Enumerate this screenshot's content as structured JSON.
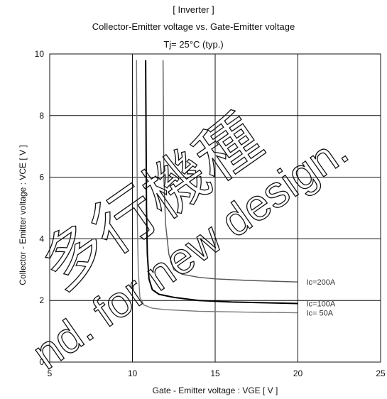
{
  "titles": {
    "line1": "[ Inverter ]",
    "line2": "Collector-Emitter voltage  vs. Gate-Emitter voltage",
    "line3": "Tj= 25°C  (typ.)"
  },
  "watermark": {
    "line1": "多行機種",
    "line2": "nd. for new design."
  },
  "chart_data": {
    "type": "line",
    "xlabel": "Gate - Emitter voltage :  VGE  [ V ]",
    "ylabel": "Collector - Emitter voltage :  VCE  [ V ]",
    "xlim": [
      5,
      25
    ],
    "ylim": [
      0,
      10
    ],
    "xticks": [
      5,
      10,
      15,
      20,
      25
    ],
    "yticks": [
      0,
      2,
      4,
      6,
      8,
      10
    ],
    "grid": true,
    "series": [
      {
        "name": "Ic=200A",
        "color": "#555555",
        "x": [
          11.85,
          11.9,
          12.0,
          12.2,
          12.5,
          13.0,
          14.0,
          15.0,
          17.0,
          20.0
        ],
        "y": [
          9.8,
          6.0,
          4.5,
          3.5,
          3.0,
          2.85,
          2.75,
          2.7,
          2.65,
          2.6
        ]
      },
      {
        "name": "Ic=100A",
        "color": "#000000",
        "x": [
          10.8,
          10.85,
          10.9,
          11.0,
          11.2,
          11.6,
          12.5,
          14.0,
          16.0,
          20.0
        ],
        "y": [
          9.8,
          5.0,
          3.5,
          2.7,
          2.35,
          2.2,
          2.1,
          2.0,
          1.95,
          1.9
        ]
      },
      {
        "name": "Ic= 50A",
        "color": "#777777",
        "x": [
          10.25,
          10.3,
          10.35,
          10.45,
          10.7,
          11.2,
          12.0,
          14.0,
          17.0,
          20.0
        ],
        "y": [
          9.8,
          4.5,
          3.0,
          2.1,
          1.85,
          1.75,
          1.7,
          1.65,
          1.62,
          1.6
        ]
      }
    ]
  }
}
